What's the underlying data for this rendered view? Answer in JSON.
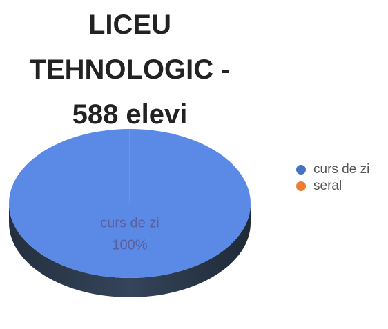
{
  "chart_data": {
    "type": "pie",
    "title": "LICEU TEHNOLOGIC - 588 elevi",
    "categories": [
      "curs de zi",
      "seral"
    ],
    "values": [
      100,
      0
    ],
    "value_labels": [
      "100%",
      null
    ],
    "colors": [
      "#5b8ae6",
      "#ed7d31"
    ],
    "legend_colors": [
      "#4472c4",
      "#ed7d31"
    ],
    "legend": "right"
  }
}
